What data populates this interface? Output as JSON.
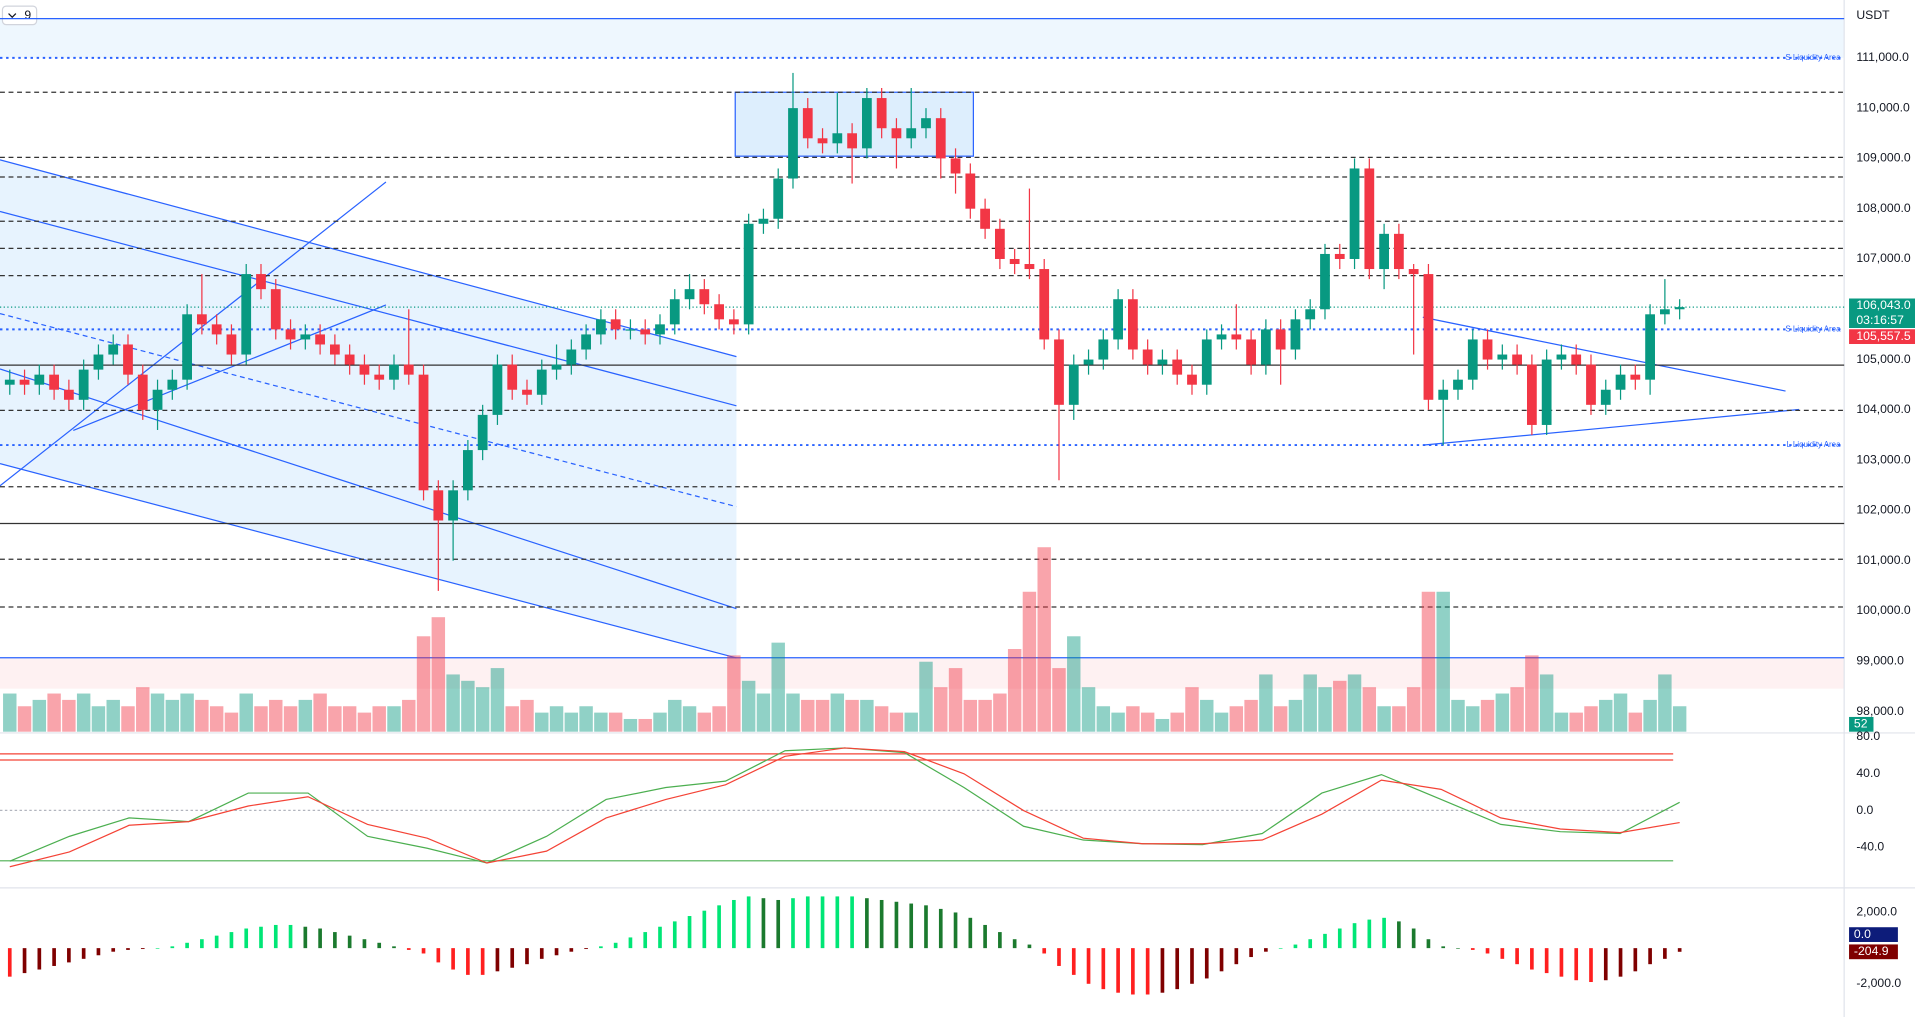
{
  "chart_data": {
    "type": "candlestick",
    "indicator_count": "9",
    "currency": "USDT",
    "up_color": "#089981",
    "down_color": "#f23645",
    "ylim": [
      97600,
      112150
    ],
    "yticks": [
      {
        "value": 111000,
        "label": "111,000.0"
      },
      {
        "value": 110000,
        "label": "110,000.0"
      },
      {
        "value": 109000,
        "label": "109,000.0"
      },
      {
        "value": 108000,
        "label": "108,000.0"
      },
      {
        "value": 107000,
        "label": "107,000.0"
      },
      {
        "value": 106000,
        "label": "106,000.0"
      },
      {
        "value": 105000,
        "label": "105,000.0"
      },
      {
        "value": 104000,
        "label": "104,000.0"
      },
      {
        "value": 103000,
        "label": "103,000.0"
      },
      {
        "value": 102000,
        "label": "102,000.0"
      },
      {
        "value": 101000,
        "label": "101,000.0"
      },
      {
        "value": 100000,
        "label": "100,000.0"
      },
      {
        "value": 99000,
        "label": "99,000.0"
      },
      {
        "value": 98000,
        "label": "98,000.0"
      }
    ],
    "open": [
      104500,
      104600,
      104500,
      104700,
      104400,
      104200,
      104800,
      105100,
      105300,
      104700,
      104000,
      104400,
      104600,
      105900,
      105700,
      105500,
      105100,
      106700,
      106400,
      105600,
      105400,
      105500,
      105300,
      105100,
      104900,
      104700,
      104600,
      104900,
      104700,
      102400,
      101800,
      102400,
      103200,
      103900,
      104900,
      104400,
      104300,
      104800,
      104900,
      105200,
      105500,
      105800,
      105600,
      105600,
      105500,
      105700,
      106200,
      106400,
      106100,
      105800,
      105700,
      107700,
      107800,
      108600,
      110000,
      109400,
      109300,
      109500,
      109200,
      110200,
      109600,
      109400,
      109600,
      109800,
      109000,
      108700,
      108000,
      107600,
      107000,
      106900,
      106800,
      105400,
      104100,
      104900,
      105000,
      105400,
      106200,
      105200,
      104900,
      105000,
      104700,
      104500,
      105400,
      105500,
      105400,
      104900,
      105600,
      105200,
      105800,
      106000,
      107100,
      107000,
      108800,
      106800,
      107500,
      106800,
      106700,
      104200,
      104400,
      104600,
      105400,
      105000,
      105100,
      104900,
      103700,
      105000,
      105100,
      104900,
      104100,
      104400,
      104700,
      104600,
      105900,
      106000
    ],
    "high": [
      104800,
      104800,
      104900,
      104900,
      104600,
      105000,
      105300,
      105500,
      105500,
      104900,
      104600,
      104800,
      106100,
      106700,
      105900,
      105700,
      106900,
      106900,
      106600,
      105800,
      105700,
      105700,
      105500,
      105300,
      105100,
      104900,
      105100,
      106000,
      104900,
      102600,
      102600,
      103400,
      104100,
      105100,
      105100,
      104600,
      105000,
      105300,
      105400,
      105700,
      106000,
      106000,
      105800,
      105800,
      105900,
      106400,
      106700,
      106600,
      106300,
      106000,
      107900,
      108000,
      108800,
      110700,
      110200,
      109600,
      110300,
      109700,
      110400,
      110400,
      109800,
      110400,
      110000,
      110000,
      109200,
      108900,
      108200,
      107800,
      107200,
      108400,
      107000,
      105600,
      105100,
      105200,
      105600,
      106400,
      106400,
      105400,
      105200,
      105200,
      104900,
      105600,
      105700,
      106100,
      105600,
      105800,
      105800,
      106000,
      106200,
      107300,
      107300,
      109000,
      109000,
      107700,
      107700,
      106900,
      106900,
      104600,
      104800,
      105600,
      105600,
      105300,
      105300,
      105100,
      105200,
      105300,
      105300,
      105100,
      104600,
      104900,
      104900,
      106100,
      106600,
      106200
    ],
    "low": [
      104300,
      104300,
      104300,
      104200,
      104000,
      104000,
      104600,
      104900,
      104500,
      103800,
      103600,
      104200,
      104400,
      105500,
      105300,
      104900,
      104900,
      106200,
      105400,
      105200,
      105200,
      105100,
      104900,
      104700,
      104500,
      104400,
      104400,
      104500,
      102200,
      100400,
      101000,
      102200,
      103000,
      103700,
      104200,
      104100,
      104100,
      104600,
      104700,
      105000,
      105300,
      105400,
      105400,
      105300,
      105300,
      105500,
      106000,
      105900,
      105600,
      105500,
      105500,
      107500,
      107600,
      108400,
      109200,
      109100,
      109100,
      108500,
      109000,
      109400,
      108800,
      109200,
      109400,
      108600,
      108300,
      107800,
      107400,
      106800,
      106700,
      106600,
      105200,
      102600,
      103800,
      104700,
      104800,
      105200,
      105000,
      104700,
      104700,
      104500,
      104300,
      104300,
      105200,
      105200,
      104700,
      104700,
      104500,
      105000,
      105600,
      105800,
      106800,
      106800,
      106600,
      106400,
      106600,
      105100,
      104000,
      103300,
      104200,
      104400,
      104800,
      104800,
      104700,
      103500,
      103500,
      104800,
      104700,
      103900,
      103900,
      104200,
      104400,
      104300,
      105700,
      105800
    ],
    "close": [
      104600,
      104500,
      104700,
      104400,
      104200,
      104800,
      105100,
      105300,
      104700,
      104000,
      104400,
      104600,
      105900,
      105700,
      105500,
      105100,
      106700,
      106400,
      105600,
      105400,
      105500,
      105300,
      105100,
      104900,
      104700,
      104600,
      104900,
      104700,
      102400,
      101800,
      102400,
      103200,
      103900,
      104900,
      104400,
      104300,
      104800,
      104900,
      105200,
      105500,
      105800,
      105600,
      105600,
      105500,
      105700,
      106200,
      106400,
      106100,
      105800,
      105700,
      107700,
      107800,
      108600,
      110000,
      109400,
      109300,
      109500,
      109200,
      110200,
      109600,
      109400,
      109600,
      109800,
      109000,
      108700,
      108000,
      107600,
      107000,
      106900,
      106800,
      105400,
      104100,
      104900,
      105000,
      105400,
      106200,
      105200,
      104900,
      105000,
      104700,
      104500,
      105400,
      105500,
      105400,
      104900,
      105600,
      105200,
      105800,
      106000,
      107100,
      107000,
      108800,
      106800,
      107500,
      106800,
      106700,
      104200,
      104400,
      104600,
      105400,
      105000,
      105100,
      104900,
      103700,
      105000,
      105100,
      104900,
      104100,
      104400,
      104700,
      104600,
      105900,
      106000,
      106043
    ],
    "volume": [
      30,
      20,
      25,
      30,
      25,
      30,
      20,
      25,
      20,
      35,
      30,
      25,
      30,
      25,
      20,
      15,
      30,
      20,
      25,
      20,
      25,
      30,
      20,
      20,
      15,
      20,
      20,
      25,
      75,
      90,
      45,
      40,
      35,
      50,
      20,
      25,
      15,
      20,
      15,
      20,
      15,
      15,
      10,
      10,
      15,
      25,
      20,
      15,
      20,
      60,
      40,
      30,
      70,
      30,
      25,
      25,
      30,
      25,
      25,
      20,
      15,
      15,
      55,
      35,
      50,
      25,
      25,
      30,
      65,
      110,
      145,
      50,
      75,
      35,
      20,
      15,
      20,
      15,
      10,
      15,
      35,
      25,
      15,
      20,
      25,
      45,
      20,
      25,
      45,
      35,
      40,
      45,
      35,
      20,
      20,
      35,
      110,
      110,
      25,
      20,
      25,
      30,
      35,
      60,
      45,
      15,
      15,
      20,
      25,
      30,
      15,
      25,
      45,
      20
    ],
    "volume_label": "52",
    "levels": [
      {
        "value": 111780,
        "style": "solid",
        "color": "#2962ff"
      },
      {
        "value": 111000,
        "style": "dotted",
        "color": "#2962ff",
        "label": "S Liquidity Area"
      },
      {
        "value": 110316,
        "style": "dashed",
        "color": "#333333"
      },
      {
        "value": 109020,
        "style": "dashed",
        "color": "#333333"
      },
      {
        "value": 108630,
        "style": "dashed",
        "color": "#333333"
      },
      {
        "value": 107750,
        "style": "dashed",
        "color": "#333333"
      },
      {
        "value": 107210,
        "style": "dashed",
        "color": "#333333"
      },
      {
        "value": 106670,
        "style": "dashed",
        "color": "#333333"
      },
      {
        "value": 105600,
        "style": "dotted",
        "color": "#2962ff",
        "label": "S Liquidity Area"
      },
      {
        "value": 104890,
        "style": "solid",
        "color": "#333333"
      },
      {
        "value": 103990,
        "style": "dashed",
        "color": "#333333"
      },
      {
        "value": 103300,
        "style": "dotted",
        "color": "#2962ff",
        "label": "L Liquidity Area"
      },
      {
        "value": 102470,
        "style": "dashed",
        "color": "#333333"
      },
      {
        "value": 101740,
        "style": "solid",
        "color": "#333333"
      },
      {
        "value": 101030,
        "style": "dashed",
        "color": "#333333"
      },
      {
        "value": 100080,
        "style": "dashed",
        "color": "#333333"
      },
      {
        "value": 99070,
        "style": "solid",
        "color": "#2962ff"
      }
    ],
    "last_price": {
      "value": 106043,
      "label": "106,043.0"
    },
    "countdown": "03:16:57",
    "ma_price": {
      "value": 105557.5,
      "label": "105,557.5"
    },
    "oscillator": {
      "ylim": [
        -84,
        83
      ],
      "yticks": [
        {
          "value": 80,
          "label": "80.0"
        },
        {
          "value": 40,
          "label": "40.0"
        },
        {
          "value": 0,
          "label": "0.0"
        },
        {
          "value": -40,
          "label": "-40.0"
        }
      ],
      "series": [
        {
          "color": "#4caf50",
          "values": [
            -55,
            -28,
            -8,
            -12,
            19,
            19,
            -28,
            -41,
            -57,
            -28,
            12,
            25,
            32,
            65,
            68,
            63,
            25,
            -17,
            -32,
            -36,
            -37,
            -25,
            19,
            39,
            12,
            -15,
            -23,
            -25,
            9
          ]
        },
        {
          "color": "#f44336",
          "values": [
            -61,
            -45,
            -16,
            -12,
            5,
            15,
            -15,
            -30,
            -57,
            -44,
            -8,
            12,
            28,
            59,
            68,
            64,
            40,
            0,
            -30,
            -36,
            -36,
            -32,
            -4,
            33,
            23,
            -8,
            -20,
            -24,
            -13
          ]
        }
      ]
    },
    "macd": {
      "ylim": [
        -3862,
        3241
      ],
      "yticks": [
        {
          "value": 2000,
          "label": "2,000.0"
        },
        {
          "value": -2000,
          "label": "-2,000.0"
        }
      ],
      "colors": {
        "up_rising": "#00e676",
        "up_falling": "#1b7a2e",
        "down_falling": "#ff1f1f",
        "down_rising": "#7f0000"
      },
      "values": [
        -1600,
        -1400,
        -1200,
        -1000,
        -800,
        -600,
        -400,
        -200,
        -100,
        -50,
        0,
        100,
        300,
        500,
        700,
        900,
        1100,
        1200,
        1300,
        1300,
        1200,
        1100,
        900,
        700,
        500,
        300,
        100,
        -100,
        -300,
        -800,
        -1200,
        -1500,
        -1500,
        -1300,
        -1100,
        -900,
        -600,
        -400,
        -200,
        -50,
        100,
        300,
        600,
        900,
        1200,
        1500,
        1800,
        2100,
        2400,
        2700,
        2900,
        2800,
        2700,
        2800,
        2900,
        2900,
        2900,
        2900,
        2800,
        2700,
        2600,
        2500,
        2400,
        2200,
        2000,
        1700,
        1300,
        900,
        500,
        200,
        -300,
        -1000,
        -1500,
        -2000,
        -2300,
        -2500,
        -2600,
        -2600,
        -2500,
        -2300,
        -2000,
        -1700,
        -1300,
        -900,
        -500,
        -200,
        0,
        200,
        500,
        800,
        1100,
        1400,
        1600,
        1700,
        1500,
        1100,
        500,
        100,
        0,
        -100,
        -300,
        -600,
        -900,
        -1200,
        -1400,
        -1600,
        -1800,
        -1900,
        -1800,
        -1600,
        -1300,
        -900,
        -600,
        -204.9
      ],
      "tags": [
        {
          "value": 0,
          "label": "0.0",
          "color": "#0d1c7a"
        },
        {
          "value": -204.9,
          "label": "-204.9",
          "color": "#7f0000"
        }
      ]
    }
  }
}
